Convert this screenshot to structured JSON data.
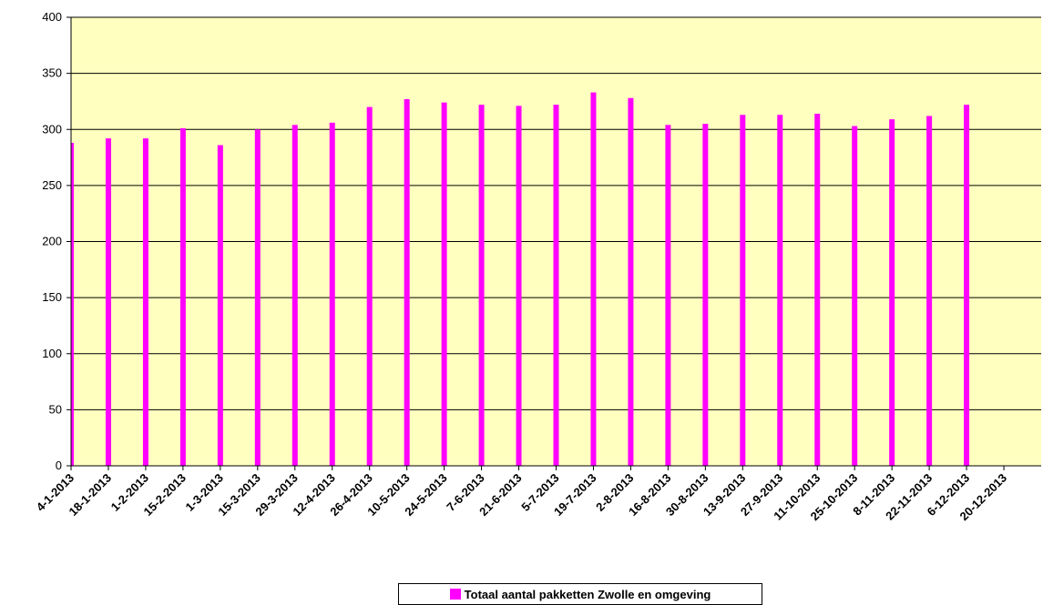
{
  "chart_data": {
    "type": "bar",
    "categories": [
      "4-1-2013",
      "18-1-2013",
      "1-2-2013",
      "15-2-2013",
      "1-3-2013",
      "15-3-2013",
      "29-3-2013",
      "12-4-2013",
      "26-4-2013",
      "10-5-2013",
      "24-5-2013",
      "7-6-2013",
      "21-6-2013",
      "5-7-2013",
      "19-7-2013",
      "2-8-2013",
      "16-8-2013",
      "30-8-2013",
      "13-9-2013",
      "27-9-2013",
      "11-10-2013",
      "25-10-2013",
      "8-11-2013",
      "22-11-2013",
      "6-12-2013",
      "20-12-2013"
    ],
    "series": [
      {
        "name": "Totaal aantal pakketten Zwolle en omgeving",
        "values": [
          288,
          292,
          292,
          301,
          286,
          300,
          304,
          306,
          320,
          327,
          324,
          322,
          321,
          322,
          333,
          328,
          304,
          305,
          313,
          313,
          314,
          303,
          309,
          312,
          322,
          null
        ]
      }
    ],
    "ylim": [
      0,
      400
    ],
    "yticks": [
      "0",
      "50",
      "100",
      "150",
      "200",
      "250",
      "300",
      "350",
      "400"
    ],
    "grid": true,
    "legend_position": "bottom",
    "colors": {
      "plot_bg": "#FFFFC0",
      "bar": "#FF00FF",
      "grid": "#000000"
    }
  }
}
